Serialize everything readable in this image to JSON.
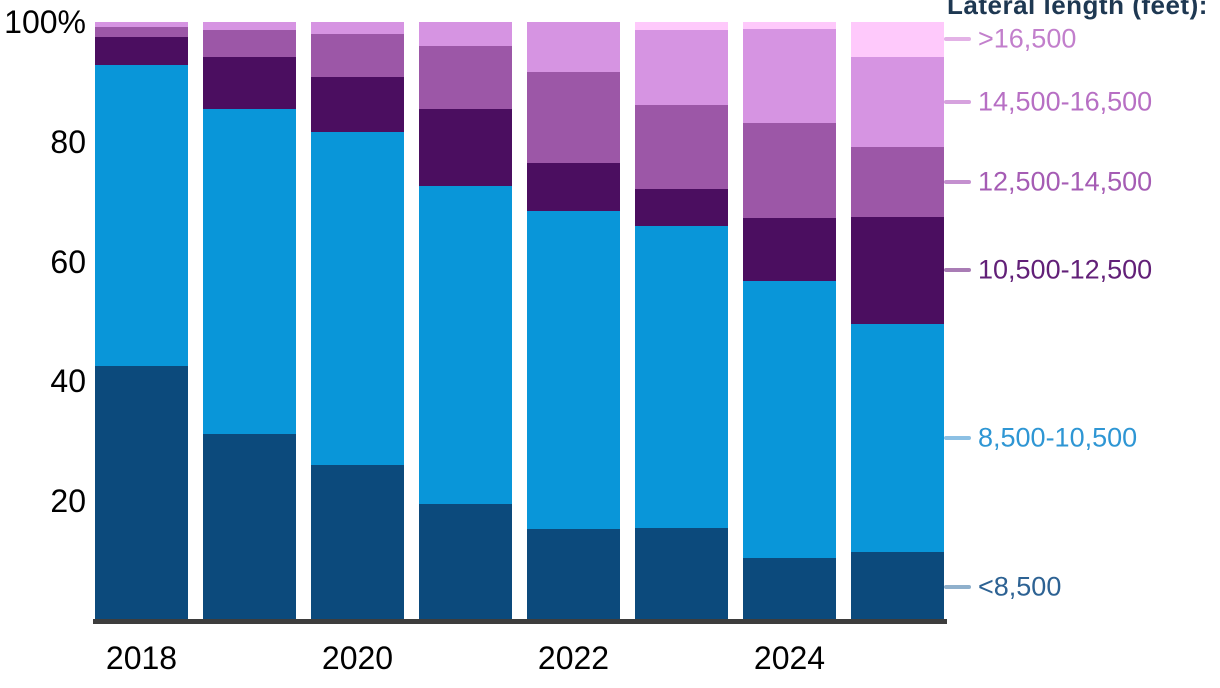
{
  "title": "Lateral length (feet):",
  "chart_data": {
    "type": "bar",
    "stacked": true,
    "percent": true,
    "title": "Lateral length (feet):",
    "xlabel": "",
    "ylabel": "",
    "ylim": [
      0,
      100
    ],
    "grid": false,
    "legend_position": "right",
    "categories": [
      "2018",
      "2019",
      "2020",
      "2021",
      "2022",
      "2023",
      "2024",
      "2025"
    ],
    "x_axis_ticks": [
      {
        "label": "2018",
        "bar_index": 0
      },
      {
        "label": "2020",
        "bar_index": 2
      },
      {
        "label": "2022",
        "bar_index": 4
      },
      {
        "label": "2024",
        "bar_index": 6
      }
    ],
    "y_axis_ticks": [
      {
        "label": "100%",
        "value": 100
      },
      {
        "label": "80",
        "value": 80
      },
      {
        "label": "60",
        "value": 60
      },
      {
        "label": "40",
        "value": 40
      },
      {
        "label": "20",
        "value": 20
      }
    ],
    "series": [
      {
        "name": "<8,500",
        "color": "#0c4a7c",
        "label_color": "#2d6293",
        "line_color": "#8fb0cc",
        "values": [
          42.6,
          31.2,
          26.0,
          19.5,
          15.4,
          15.5,
          10.5,
          11.5
        ]
      },
      {
        "name": "8,500-10,500",
        "color": "#0996d9",
        "label_color": "#2e96d4",
        "line_color": "#8cc0e4",
        "values": [
          50.2,
          54.3,
          55.6,
          53.1,
          53.1,
          50.4,
          46.2,
          38.1
        ]
      },
      {
        "name": "10,500-12,500",
        "color": "#4b0e60",
        "label_color": "#622078",
        "line_color": "#a97cb5",
        "values": [
          4.7,
          8.7,
          9.2,
          12.9,
          8.0,
          6.3,
          10.5,
          17.9
        ]
      },
      {
        "name": "12,500-14,500",
        "color": "#9c57a7",
        "label_color": "#a55cb4",
        "line_color": "#c490cf",
        "values": [
          1.7,
          4.5,
          7.2,
          10.5,
          15.2,
          14.0,
          15.9,
          11.7
        ]
      },
      {
        "name": "14,500-16,500",
        "color": "#d694e2",
        "label_color": "#b76fc4",
        "line_color": "#d6a2de",
        "values": [
          0.8,
          1.3,
          2.0,
          4.0,
          8.3,
          12.5,
          15.7,
          15.0
        ]
      },
      {
        "name": ">16,500",
        "color": "#fec9fb",
        "label_color": "#c27fcc",
        "line_color": "#e3b2e6",
        "values": [
          0.0,
          0.0,
          0.0,
          0.0,
          0.0,
          1.3,
          1.2,
          5.8
        ]
      }
    ]
  }
}
